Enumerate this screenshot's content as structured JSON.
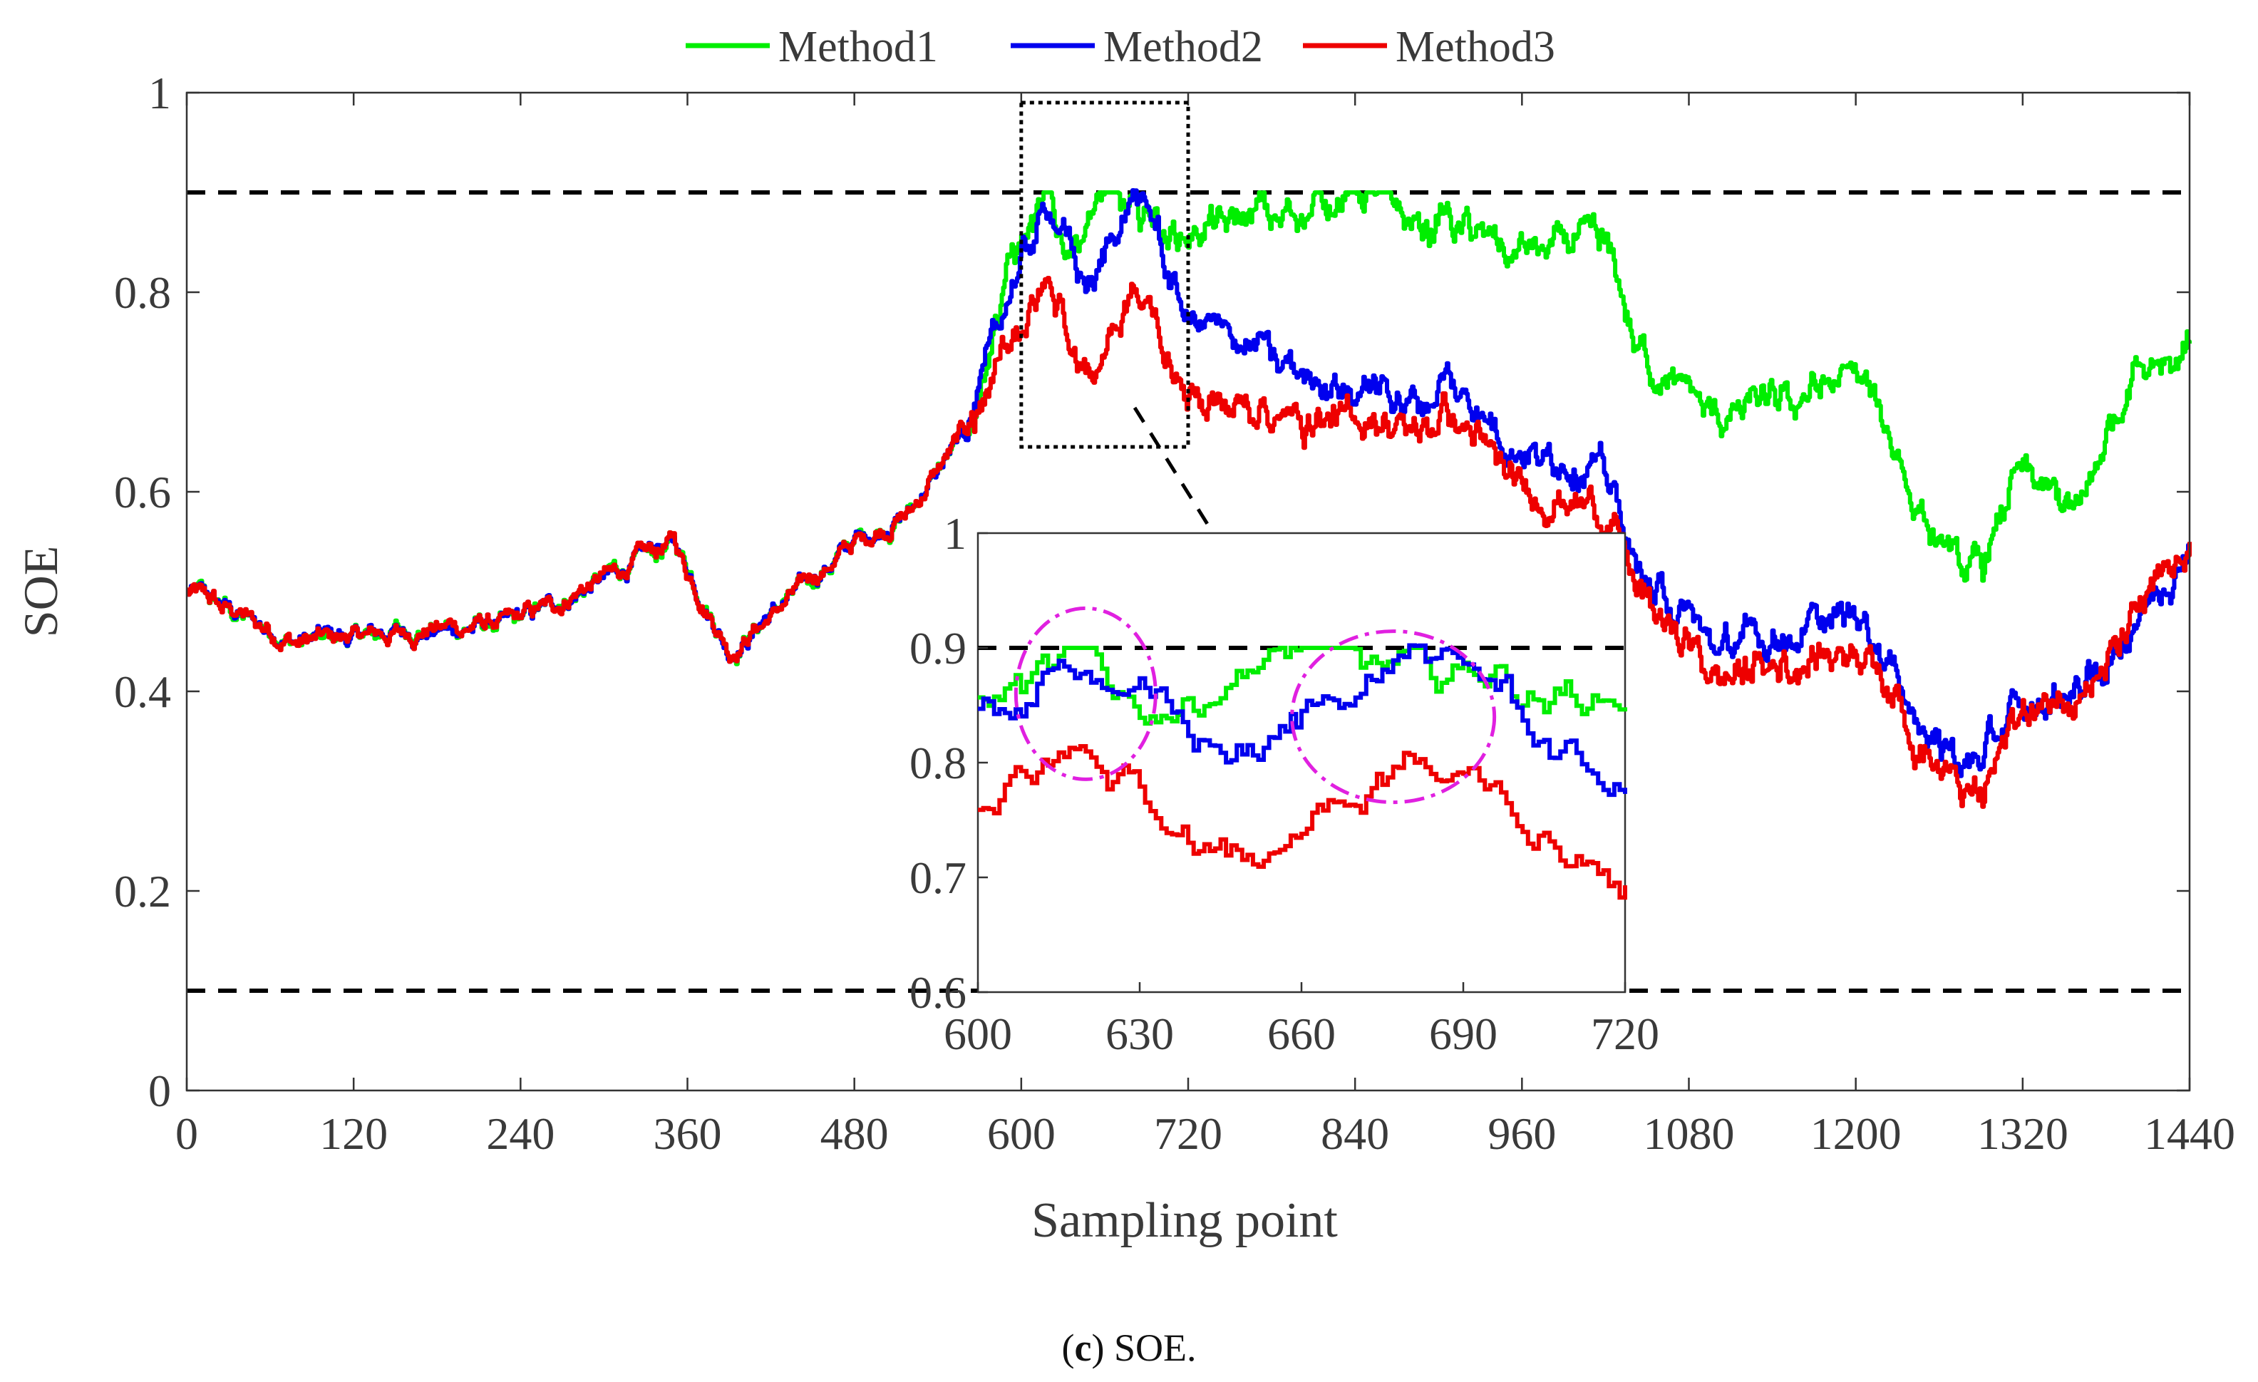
{
  "chart_data": {
    "type": "line",
    "xlabel": "Sampling point",
    "ylabel": "SOE",
    "xlim": [
      0,
      1440
    ],
    "ylim": [
      0,
      1
    ],
    "xticks": [
      0,
      120,
      240,
      360,
      480,
      600,
      720,
      840,
      960,
      1080,
      1200,
      1320,
      1440
    ],
    "yticks": [
      0,
      0.2,
      0.4,
      0.6,
      0.8,
      1
    ],
    "xtick_labels": [
      "0",
      "120",
      "240",
      "360",
      "480",
      "600",
      "720",
      "840",
      "960",
      "1080",
      "1200",
      "1320",
      "1440"
    ],
    "ytick_labels": [
      "0",
      "0.2",
      "0.4",
      "0.6",
      "0.8",
      "1"
    ],
    "reference_lines": [
      0.9,
      0.1
    ],
    "series_colors": {
      "Method1": "#00ee00",
      "Method2": "#0000ee",
      "Method3": "#ee0000"
    },
    "legend": [
      "Method1",
      "Method2",
      "Method3"
    ],
    "legend_position": "top-center",
    "key_points": {
      "Method1": [
        [
          0,
          0.5
        ],
        [
          80,
          0.45
        ],
        [
          240,
          0.47
        ],
        [
          350,
          0.55
        ],
        [
          390,
          0.44
        ],
        [
          480,
          0.55
        ],
        [
          520,
          0.58
        ],
        [
          560,
          0.66
        ],
        [
          590,
          0.82
        ],
        [
          620,
          0.88
        ],
        [
          630,
          0.84
        ],
        [
          660,
          0.9
        ],
        [
          700,
          0.86
        ],
        [
          840,
          0.9
        ],
        [
          950,
          0.84
        ],
        [
          1020,
          0.85
        ],
        [
          1040,
          0.75
        ],
        [
          1100,
          0.67
        ],
        [
          1200,
          0.72
        ],
        [
          1260,
          0.55
        ],
        [
          1290,
          0.52
        ],
        [
          1320,
          0.62
        ],
        [
          1360,
          0.58
        ],
        [
          1400,
          0.72
        ],
        [
          1440,
          0.75
        ]
      ],
      "Method2": [
        [
          0,
          0.5
        ],
        [
          80,
          0.45
        ],
        [
          240,
          0.47
        ],
        [
          350,
          0.55
        ],
        [
          390,
          0.44
        ],
        [
          480,
          0.55
        ],
        [
          520,
          0.58
        ],
        [
          560,
          0.66
        ],
        [
          590,
          0.79
        ],
        [
          620,
          0.88
        ],
        [
          650,
          0.8
        ],
        [
          680,
          0.9
        ],
        [
          720,
          0.78
        ],
        [
          840,
          0.7
        ],
        [
          910,
          0.7
        ],
        [
          960,
          0.64
        ],
        [
          1020,
          0.62
        ],
        [
          1040,
          0.53
        ],
        [
          1100,
          0.44
        ],
        [
          1200,
          0.48
        ],
        [
          1260,
          0.35
        ],
        [
          1290,
          0.33
        ],
        [
          1320,
          0.38
        ],
        [
          1380,
          0.42
        ],
        [
          1440,
          0.55
        ]
      ],
      "Method3": [
        [
          0,
          0.5
        ],
        [
          80,
          0.45
        ],
        [
          240,
          0.47
        ],
        [
          350,
          0.55
        ],
        [
          390,
          0.44
        ],
        [
          480,
          0.55
        ],
        [
          520,
          0.58
        ],
        [
          560,
          0.66
        ],
        [
          590,
          0.74
        ],
        [
          620,
          0.8
        ],
        [
          650,
          0.71
        ],
        [
          680,
          0.8
        ],
        [
          720,
          0.7
        ],
        [
          840,
          0.67
        ],
        [
          910,
          0.67
        ],
        [
          960,
          0.6
        ],
        [
          1020,
          0.58
        ],
        [
          1040,
          0.51
        ],
        [
          1100,
          0.41
        ],
        [
          1200,
          0.45
        ],
        [
          1260,
          0.33
        ],
        [
          1290,
          0.29
        ],
        [
          1320,
          0.38
        ],
        [
          1380,
          0.42
        ],
        [
          1440,
          0.55
        ]
      ]
    },
    "inset": {
      "xlim": [
        600,
        720
      ],
      "ylim": [
        0.6,
        1
      ],
      "xticks": [
        600,
        630,
        660,
        690,
        720
      ],
      "yticks": [
        0.6,
        0.7,
        0.8,
        0.9,
        1
      ],
      "xtick_labels": [
        "600",
        "630",
        "660",
        "690",
        "720"
      ],
      "ytick_labels": [
        "0.6",
        "0.7",
        "0.8",
        "0.9",
        "1"
      ],
      "reference_line": 0.9,
      "highlight_regions": [
        [
          620,
          0.86
        ],
        [
          677,
          0.84
        ]
      ]
    }
  },
  "caption": {
    "letter": "c",
    "text": " SOE."
  }
}
